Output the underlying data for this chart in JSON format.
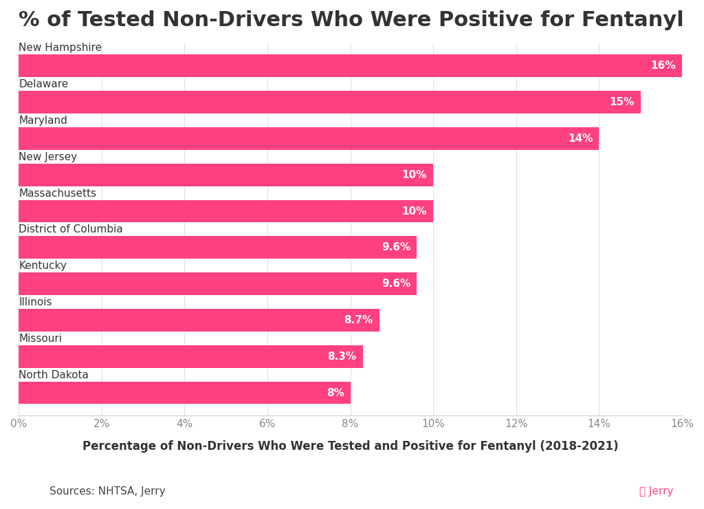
{
  "title": "% of Tested Non-Drivers Who Were Positive for Fentanyl",
  "xlabel": "Percentage of Non-Drivers Who Were Tested and Positive for Fentanyl (2018-2021)",
  "source": "Sources: NHTSA, Jerry",
  "categories": [
    "New Hampshire",
    "Delaware",
    "Maryland",
    "New Jersey",
    "Massachusetts",
    "District of Columbia",
    "Kentucky",
    "Illinois",
    "Missouri",
    "North Dakota"
  ],
  "values": [
    16,
    15,
    14,
    10,
    10,
    9.6,
    9.6,
    8.7,
    8.3,
    8
  ],
  "labels": [
    "16%",
    "15%",
    "14%",
    "10%",
    "10%",
    "9.6%",
    "9.6%",
    "8.7%",
    "8.3%",
    "8%"
  ],
  "bar_color": "#FF4081",
  "bar_height": 0.62,
  "xlim": [
    0,
    16
  ],
  "xticks": [
    0,
    2,
    4,
    6,
    8,
    10,
    12,
    14,
    16
  ],
  "xtick_labels": [
    "0%",
    "2%",
    "4%",
    "6%",
    "8%",
    "10%",
    "12%",
    "14%",
    "16%"
  ],
  "background_color": "#FFFFFF",
  "title_fontsize": 22,
  "label_fontsize": 11,
  "category_fontsize": 11,
  "xlabel_fontsize": 12,
  "source_fontsize": 11,
  "text_color": "#333333",
  "source_color": "#444444",
  "jerry_color": "#FF4081",
  "bar_label_color": "#FFFFFF",
  "bar_label_fontsize": 11,
  "tick_color": "#888888"
}
